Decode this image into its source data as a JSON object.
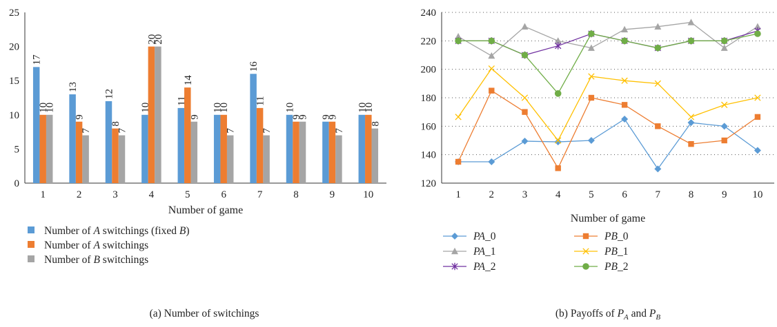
{
  "chart_data": [
    {
      "type": "bar",
      "categories": [
        "1",
        "2",
        "3",
        "4",
        "5",
        "6",
        "7",
        "8",
        "9",
        "10"
      ],
      "xlabel": "Number of game",
      "ylabel": "",
      "ylim": [
        0,
        25
      ],
      "yticks": [
        "0",
        "5",
        "10",
        "15",
        "20",
        "25"
      ],
      "legend_position": "bottom",
      "series": [
        {
          "name_parts": [
            "Number of ",
            "A",
            " switchings (fixed ",
            "B",
            ")"
          ],
          "color": "#5b9bd5",
          "values": [
            17,
            13,
            12,
            10,
            11,
            10,
            16,
            10,
            9,
            10
          ]
        },
        {
          "name_parts": [
            "Number of ",
            "A",
            " switchings",
            "",
            ""
          ],
          "color": "#ed7d31",
          "values": [
            10,
            9,
            8,
            20,
            14,
            10,
            11,
            9,
            9,
            10
          ]
        },
        {
          "name_parts": [
            "Number of ",
            "B",
            " switchings",
            "",
            ""
          ],
          "color": "#a5a5a5",
          "values": [
            10,
            7,
            7,
            20,
            9,
            7,
            7,
            9,
            7,
            8
          ]
        }
      ],
      "caption": {
        "prefix": "(a)",
        "text": "Number of switchings"
      }
    },
    {
      "type": "line",
      "x": [
        "1",
        "2",
        "3",
        "4",
        "5",
        "6",
        "7",
        "8",
        "9",
        "10"
      ],
      "xlabel": "Number of game",
      "ylabel": "",
      "ylim": [
        120,
        240
      ],
      "yticks": [
        "120",
        "140",
        "160",
        "180",
        "200",
        "220",
        "240"
      ],
      "grid": "horizontal-dotted",
      "legend_position": "bottom",
      "series": [
        {
          "name_main": "PA",
          "name_suffix": "_0",
          "color": "#5b9bd5",
          "marker": "diamond",
          "values": [
            135,
            135,
            149.5,
            149,
            150,
            165,
            130,
            162.5,
            160,
            143
          ]
        },
        {
          "name_main": "PB",
          "name_suffix": "_0",
          "color": "#ed7d31",
          "marker": "square",
          "values": [
            135,
            185,
            170,
            130.5,
            180,
            175,
            160,
            147.5,
            150,
            166.5
          ]
        },
        {
          "name_main": "PA",
          "name_suffix": "_1",
          "color": "#a5a5a5",
          "marker": "triangle",
          "values": [
            223,
            209.5,
            230,
            220,
            215,
            228,
            230,
            233,
            215,
            230
          ]
        },
        {
          "name_main": "PB",
          "name_suffix": "_1",
          "color": "#ffc000",
          "marker": "x",
          "values": [
            166.5,
            200.5,
            180,
            150,
            195,
            192,
            190,
            166.5,
            175,
            180
          ]
        },
        {
          "name_main": "PA",
          "name_suffix": "_2",
          "color": "#7030a0",
          "marker": "star",
          "values": [
            220,
            220,
            210,
            216.5,
            225,
            220,
            215,
            220,
            220,
            227
          ]
        },
        {
          "name_main": "PB",
          "name_suffix": "_2",
          "color": "#70ad47",
          "marker": "circle",
          "values": [
            220,
            220,
            210,
            183,
            225,
            220,
            215,
            220,
            220,
            225
          ]
        }
      ],
      "caption": {
        "prefix": "(b)",
        "text": "Payoffs of",
        "var1": "P",
        "sub1": "A",
        "mid": "and",
        "var2": "P",
        "sub2": "B"
      }
    }
  ]
}
